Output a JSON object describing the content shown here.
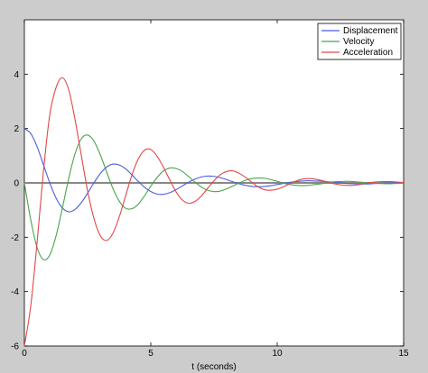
{
  "chart_data": {
    "type": "line",
    "title": "",
    "xlabel": "t (seconds)",
    "ylabel": "",
    "xlim": [
      0,
      15
    ],
    "ylim": [
      -6,
      6
    ],
    "x_ticks": [
      0,
      5,
      10,
      15
    ],
    "y_ticks": [
      -6,
      -4,
      -2,
      0,
      2,
      4
    ],
    "grid": false,
    "zero_line": true,
    "legend_position": "top-right",
    "x": [
      0,
      0.25,
      0.5,
      0.75,
      1,
      1.25,
      1.5,
      1.75,
      2,
      2.25,
      2.5,
      2.75,
      3,
      3.25,
      3.5,
      3.75,
      4,
      4.25,
      4.5,
      4.75,
      5,
      5.25,
      5.5,
      5.75,
      6,
      6.25,
      6.5,
      6.75,
      7,
      7.25,
      7.5,
      7.75,
      8,
      8.25,
      8.5,
      8.75,
      9,
      9.25,
      9.5,
      9.75,
      10,
      10.25,
      10.5,
      10.75,
      11,
      11.25,
      11.5,
      11.75,
      12,
      12.25,
      12.5,
      12.75,
      13,
      13.25,
      13.5,
      13.75,
      14,
      14.25,
      14.5,
      14.75,
      15
    ],
    "series": [
      {
        "name": "Displacement",
        "color": "#4a5ce0",
        "values": [
          2,
          1.82,
          1.34,
          0.68,
          0.01,
          -0.55,
          -0.92,
          -1.06,
          -0.98,
          -0.73,
          -0.38,
          0,
          0.34,
          0.58,
          0.69,
          0.66,
          0.52,
          0.3,
          0.06,
          -0.16,
          -0.32,
          -0.41,
          -0.42,
          -0.36,
          -0.25,
          -0.11,
          0.03,
          0.14,
          0.22,
          0.25,
          0.24,
          0.19,
          0.12,
          0.04,
          -0.03,
          -0.09,
          -0.13,
          -0.14,
          -0.13,
          -0.1,
          -0.06,
          -0.02,
          0.02,
          0.05,
          0.07,
          0.08,
          0.07,
          0.06,
          0.04,
          0.02,
          0,
          -0.02,
          -0.03,
          -0.04,
          -0.04,
          -0.03,
          -0.02,
          -0.01,
          0,
          0.01,
          0.02
        ]
      },
      {
        "name": "Velocity",
        "color": "#49a34c",
        "values": [
          0,
          -1.35,
          -2.37,
          -2.82,
          -2.66,
          -1.96,
          -0.94,
          0.15,
          1.06,
          1.62,
          1.76,
          1.54,
          1.04,
          0.41,
          -0.2,
          -0.67,
          -0.93,
          -0.95,
          -0.79,
          -0.48,
          -0.12,
          0.2,
          0.44,
          0.55,
          0.53,
          0.42,
          0.23,
          0.03,
          -0.15,
          -0.27,
          -0.32,
          -0.3,
          -0.22,
          -0.11,
          0,
          0.1,
          0.16,
          0.18,
          0.17,
          0.12,
          0.06,
          -0.01,
          -0.06,
          -0.09,
          -0.1,
          -0.09,
          -0.06,
          -0.03,
          0.01,
          0.04,
          0.05,
          0.06,
          0.05,
          0.03,
          0.01,
          -0.01,
          -0.02,
          -0.03,
          -0.03,
          -0.02,
          -0.01
        ]
      },
      {
        "name": "Acceleration",
        "color": "#e04848",
        "values": [
          -6,
          -4.54,
          -2.22,
          0.39,
          2.48,
          3.5,
          3.87,
          3.44,
          2.35,
          1.02,
          -0.29,
          -1.3,
          -1.94,
          -2.12,
          -1.86,
          -1.26,
          -0.49,
          0.28,
          0.87,
          1.2,
          1.23,
          0.98,
          0.58,
          0.11,
          -0.33,
          -0.63,
          -0.75,
          -0.68,
          -0.48,
          -0.2,
          0.08,
          0.3,
          0.42,
          0.44,
          0.35,
          0.2,
          0.02,
          -0.15,
          -0.25,
          -0.27,
          -0.23,
          -0.14,
          -0.03,
          0.07,
          0.14,
          0.16,
          0.14,
          0.09,
          0.03,
          -0.03,
          -0.07,
          -0.09,
          -0.09,
          -0.06,
          -0.02,
          0.02,
          0.04,
          0.05,
          0.05,
          0.03,
          0.01
        ]
      }
    ]
  }
}
